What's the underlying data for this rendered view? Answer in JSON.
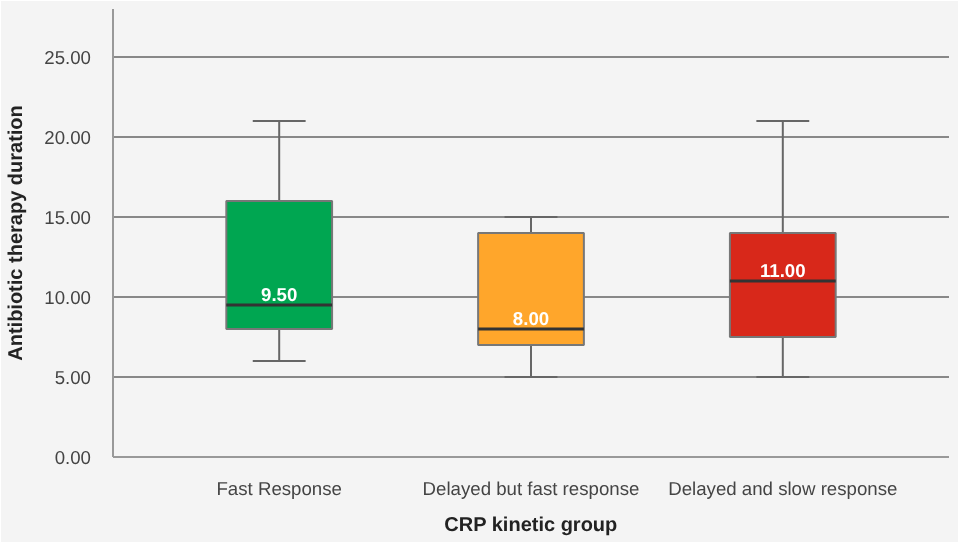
{
  "chart_data": {
    "type": "box",
    "xlabel": "CRP kinetic group",
    "ylabel": "Antibiotic therapy duration",
    "categories": [
      "Fast Response",
      "Delayed but fast response",
      "Delayed and slow response"
    ],
    "boxes": [
      {
        "low": 6,
        "q1": 8,
        "median": 9.5,
        "q3": 16,
        "high": 21
      },
      {
        "low": 5,
        "q1": 7,
        "median": 8,
        "q3": 14,
        "high": 15
      },
      {
        "low": 5,
        "q1": 7.5,
        "median": 11,
        "q3": 14,
        "high": 21
      }
    ],
    "colors": [
      "#00a651",
      "#ffa62b",
      "#d8281a"
    ],
    "value_labels": [
      "9.50",
      "8.00",
      "11.00"
    ],
    "ylim": [
      0,
      28
    ],
    "yticks": [
      {
        "value": 0,
        "label": "0.00"
      },
      {
        "value": 5,
        "label": "5.00"
      },
      {
        "value": 10,
        "label": "10.00"
      },
      {
        "value": 15,
        "label": "15.00"
      },
      {
        "value": 20,
        "label": "20.00"
      },
      {
        "value": 25,
        "label": "25.00"
      }
    ],
    "grid": "y"
  }
}
